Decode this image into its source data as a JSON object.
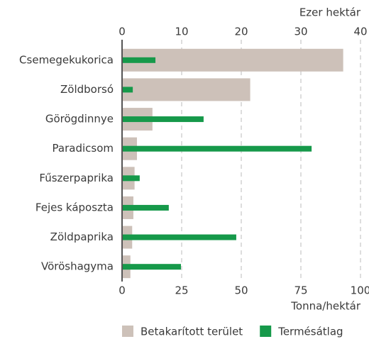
{
  "chart_data": {
    "type": "bar",
    "orientation": "horizontal",
    "categories": [
      "Csemegekukorica",
      "Zöldborsó",
      "Görögdinnye",
      "Paradicsom",
      "Fűszerpaprika",
      "Fejes káposzta",
      "Zöldpaprika",
      "Vöröshagyma"
    ],
    "series": [
      {
        "name": "Betakarított terület",
        "color": "#cdc1b9",
        "axis": "x2",
        "values": [
          37.1,
          21.5,
          5.1,
          2.5,
          2.1,
          1.9,
          1.7,
          1.4
        ]
      },
      {
        "name": "Termésátlag",
        "color": "#16994a",
        "axis": "x",
        "values": [
          14,
          4.5,
          34.2,
          79.5,
          7.4,
          19.6,
          47.9,
          24.7
        ]
      }
    ],
    "xlim": [
      0,
      100
    ],
    "xticks": [
      0,
      25,
      50,
      75,
      100
    ],
    "x_label": "Tonna/hektár",
    "x2lim": [
      0,
      40
    ],
    "x2ticks": [
      0,
      10,
      20,
      30,
      40
    ],
    "x2_label": "Ezer hektár",
    "grid": true,
    "legend": "bottom"
  }
}
